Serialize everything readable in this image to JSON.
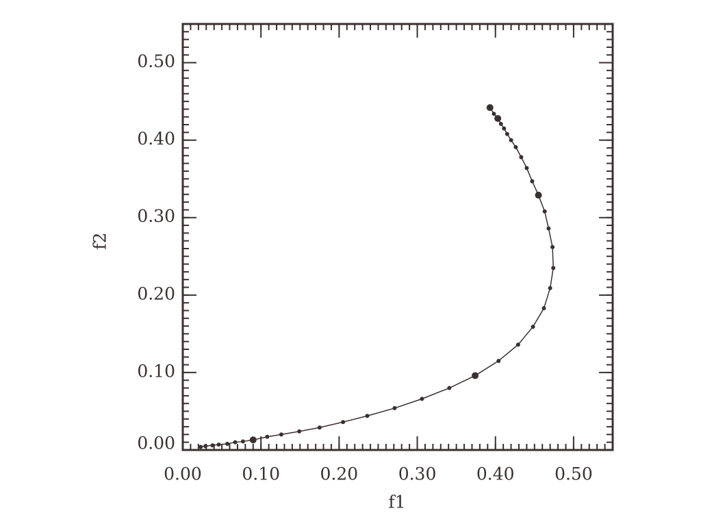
{
  "chart_data": {
    "type": "line",
    "xlabel": "f1",
    "ylabel": "f2",
    "color": "#3b3030",
    "marker": true,
    "x": [
      0.023,
      0.029,
      0.038,
      0.046,
      0.057,
      0.067,
      0.077,
      0.09,
      0.108,
      0.126,
      0.149,
      0.175,
      0.205,
      0.236,
      0.271,
      0.306,
      0.341,
      0.374,
      0.404,
      0.429,
      0.448,
      0.462,
      0.47,
      0.474,
      0.473,
      0.468,
      0.463,
      0.455,
      0.447,
      0.44,
      0.433,
      0.426,
      0.42,
      0.415,
      0.411,
      0.407,
      0.403,
      0.398,
      0.393
    ],
    "y": [
      0.004,
      0.005,
      0.006,
      0.007,
      0.008,
      0.01,
      0.011,
      0.013,
      0.017,
      0.02,
      0.024,
      0.029,
      0.036,
      0.044,
      0.054,
      0.066,
      0.08,
      0.096,
      0.115,
      0.136,
      0.159,
      0.183,
      0.209,
      0.235,
      0.262,
      0.286,
      0.308,
      0.329,
      0.347,
      0.364,
      0.378,
      0.391,
      0.4,
      0.408,
      0.415,
      0.421,
      0.428,
      0.434,
      0.442
    ],
    "marker_sizes": [
      3,
      3,
      3,
      3,
      3,
      3,
      3,
      5,
      3,
      3,
      3,
      3,
      3,
      3,
      3,
      3,
      3,
      5,
      3,
      3,
      3,
      3,
      3,
      3,
      3,
      3,
      3,
      5,
      3,
      3,
      3,
      3,
      3,
      3,
      3,
      3,
      5,
      3,
      5
    ],
    "xlim": [
      0,
      0.55
    ],
    "ylim": [
      0,
      0.55
    ],
    "xticks": [
      {
        "value": 0,
        "label": "0.00"
      },
      {
        "value": 0.1,
        "label": "0.10"
      },
      {
        "value": 0.2,
        "label": "0.20"
      },
      {
        "value": 0.3,
        "label": "0.30"
      },
      {
        "value": 0.4,
        "label": "0.40"
      },
      {
        "value": 0.5,
        "label": "0.50"
      }
    ],
    "yticks": [
      {
        "value": 0,
        "label": "0.00"
      },
      {
        "value": 0.1,
        "label": "0.10"
      },
      {
        "value": 0.2,
        "label": "0.20"
      },
      {
        "value": 0.3,
        "label": "0.30"
      },
      {
        "value": 0.4,
        "label": "0.40"
      },
      {
        "value": 0.5,
        "label": "0.50"
      }
    ],
    "grid": false
  }
}
